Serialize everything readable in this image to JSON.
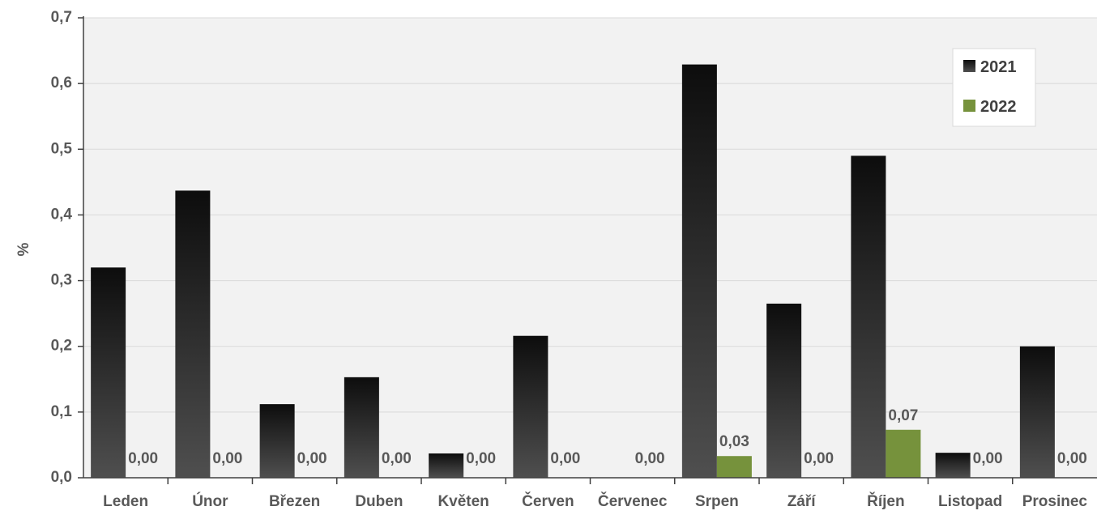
{
  "chart_data": {
    "type": "bar",
    "title": "",
    "xlabel": "",
    "ylabel": "%",
    "ylim": [
      0,
      0.7
    ],
    "yticks": [
      "0,0",
      "0,1",
      "0,2",
      "0,3",
      "0,4",
      "0,5",
      "0,6",
      "0,7"
    ],
    "categories": [
      "Leden",
      "Únor",
      "Březen",
      "Duben",
      "Květen",
      "Červen",
      "Červenec",
      "Srpen",
      "Září",
      "Říjen",
      "Listopad",
      "Prosinec"
    ],
    "series": [
      {
        "name": "2021",
        "values": [
          0.32,
          0.437,
          0.112,
          0.153,
          0.037,
          0.216,
          null,
          0.629,
          0.265,
          0.49,
          0.038,
          0.2
        ]
      },
      {
        "name": "2022",
        "values": [
          0.0,
          0.0,
          0.0,
          0.0,
          0.0,
          0.0,
          0.0,
          0.033,
          0.0,
          0.073,
          0.0,
          0.0
        ],
        "labels": [
          "0,00",
          "0,00",
          "0,00",
          "0,00",
          "0,00",
          "0,00",
          "0,00",
          "0,03",
          "0,00",
          "0,07",
          "0,00",
          "0,00"
        ]
      }
    ],
    "colors": {
      "2021_top": "#0d0d0d",
      "2021_bottom": "#4f4f4f",
      "2022": "#76923c"
    },
    "grid": true,
    "legend_position": "top-right"
  }
}
